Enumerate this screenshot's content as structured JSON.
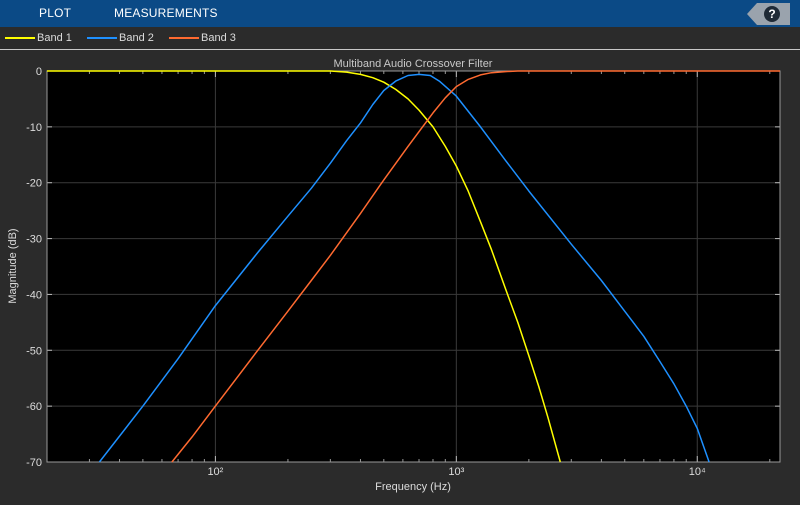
{
  "toolbar": {
    "tabs": [
      {
        "label": "PLOT"
      },
      {
        "label": "MEASUREMENTS"
      }
    ],
    "help_label": "?"
  },
  "legend": {
    "items": [
      {
        "label": "Band 1",
        "color": "#ffff00"
      },
      {
        "label": "Band 2",
        "color": "#1e90ff"
      },
      {
        "label": "Band 3",
        "color": "#ff6a30"
      }
    ]
  },
  "chart_data": {
    "type": "line",
    "title": "Multiband Audio Crossover Filter",
    "xlabel": "Frequency (Hz)",
    "ylabel": "Magnitude (dB)",
    "xscale": "log",
    "xlim": [
      20,
      22050
    ],
    "ylim": [
      -70,
      0
    ],
    "yticks": [
      0,
      -10,
      -20,
      -30,
      -40,
      -50,
      -60,
      -70
    ],
    "yticklabels": [
      "0",
      "-10",
      "-20",
      "-30",
      "-40",
      "-50",
      "-60",
      "-70"
    ],
    "xticks": [
      100,
      1000,
      10000
    ],
    "xticklabels": [
      "10²",
      "10³",
      "10⁴"
    ],
    "grid": true,
    "background": "#000000",
    "series": [
      {
        "name": "Band 1",
        "color": "#ffff00",
        "x": [
          20,
          100,
          200,
          300,
          350,
          400,
          450,
          500,
          560,
          630,
          700,
          800,
          900,
          1000,
          1120,
          1260,
          1400,
          1600,
          1800,
          2000,
          2200,
          2400,
          2700
        ],
        "y": [
          0,
          0,
          0,
          0,
          -0.2,
          -0.6,
          -1.2,
          -2.0,
          -3.3,
          -5.0,
          -7.0,
          -10.0,
          -13.5,
          -17.0,
          -21.5,
          -27.0,
          -32.0,
          -39.0,
          -45.0,
          -51.0,
          -56.5,
          -62.0,
          -70.0
        ]
      },
      {
        "name": "Band 2",
        "color": "#1e90ff",
        "x": [
          33,
          50,
          70,
          100,
          150,
          200,
          250,
          300,
          350,
          400,
          450,
          500,
          560,
          630,
          700,
          780,
          850,
          1000,
          1260,
          1600,
          2000,
          3000,
          4000,
          5000,
          6000,
          7000,
          8000,
          9000,
          10000,
          11200
        ],
        "y": [
          -70.0,
          -60.0,
          -51.5,
          -42.0,
          -32.5,
          -26.0,
          -21.0,
          -16.5,
          -12.5,
          -9.3,
          -6.0,
          -3.5,
          -1.8,
          -0.8,
          -0.6,
          -0.8,
          -1.8,
          -4.5,
          -10.0,
          -16.0,
          -21.5,
          -31.0,
          -37.5,
          -43.0,
          -47.5,
          -52.0,
          -56.0,
          -60.0,
          -64.0,
          -70.0
        ]
      },
      {
        "name": "Band 3",
        "color": "#ff6a30",
        "x": [
          66,
          80,
          100,
          150,
          200,
          250,
          300,
          400,
          500,
          630,
          800,
          900,
          1000,
          1120,
          1260,
          1400,
          1600,
          1800,
          2000,
          22050
        ],
        "y": [
          -70.0,
          -65.5,
          -60.0,
          -50.0,
          -43.0,
          -37.5,
          -33.0,
          -25.5,
          -19.5,
          -13.5,
          -7.5,
          -4.8,
          -2.8,
          -1.5,
          -0.7,
          -0.3,
          -0.1,
          0,
          0,
          0
        ]
      }
    ]
  }
}
